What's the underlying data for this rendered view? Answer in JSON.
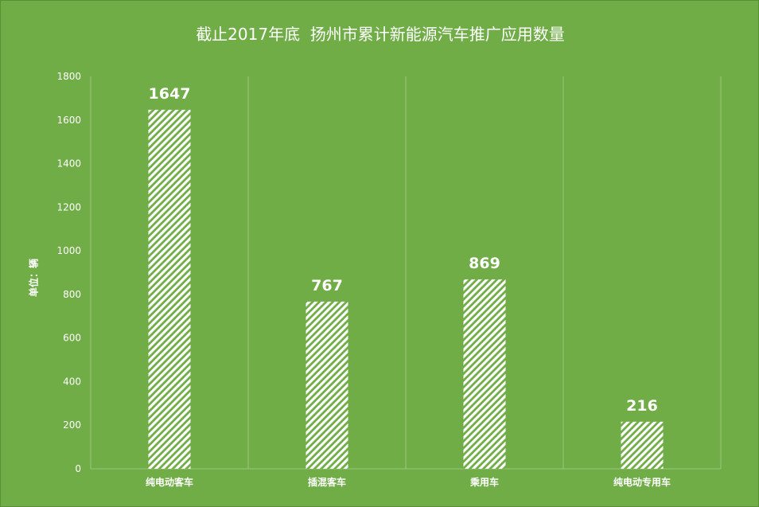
{
  "chart_data": {
    "type": "bar",
    "title": "截止2017年底  扬州市累计新能源汽车推广应用数量",
    "ylabel": "单位：辆",
    "xlabel": "",
    "categories": [
      "纯电动客车",
      "插混客车",
      "乘用车",
      "纯电动专用车"
    ],
    "values": [
      1647,
      767,
      869,
      216
    ],
    "ylim": [
      0,
      1800
    ],
    "yticks": [
      0,
      200,
      400,
      600,
      800,
      1000,
      1200,
      1400,
      1600,
      1800
    ],
    "grid": "vertical",
    "legend": "none",
    "data_labels": true,
    "bar_fill": "white diagonal hatch",
    "colors": {
      "background": "#70ad47",
      "bar": "#ffffff",
      "text": "#ffffff",
      "gridline": "#9bc77e"
    }
  }
}
